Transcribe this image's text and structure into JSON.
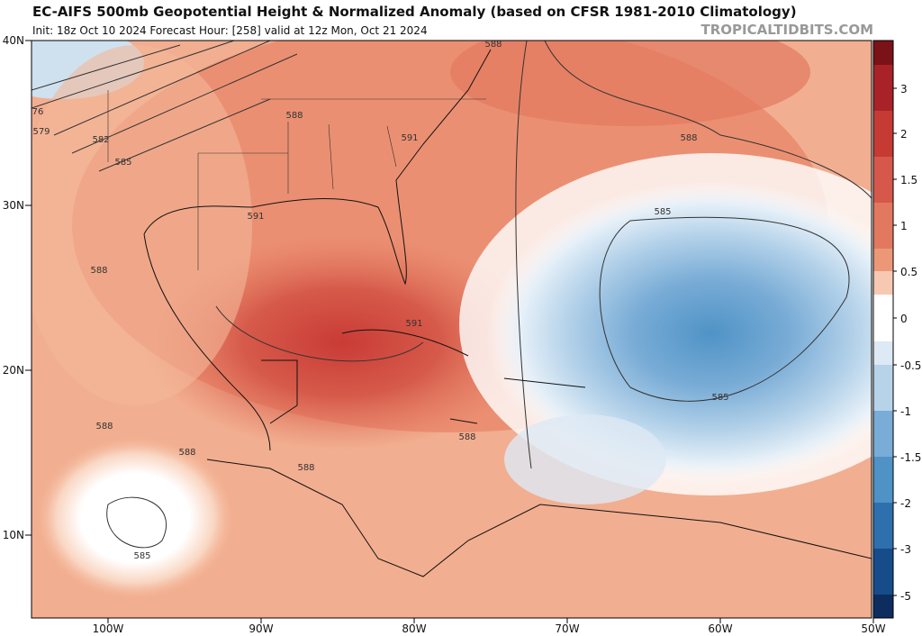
{
  "header": {
    "title": "EC-AIFS 500mb Geopotential Height & Normalized Anomaly (based on CFSR 1981-2010 Climatology)",
    "subtitle": "Init: 18z Oct 10 2024   Forecast Hour: [258]   valid at 12z Mon, Oct 21 2024",
    "watermark": "TROPICALTIDBITS.COM"
  },
  "map": {
    "lat_labels": [
      "40N",
      "30N",
      "20N",
      "10N"
    ],
    "lon_labels": [
      "100W",
      "90W",
      "80W",
      "70W",
      "60W",
      "50W"
    ],
    "contour_labels": [
      "588",
      "591",
      "591",
      "591",
      "588",
      "588",
      "588",
      "588",
      "588",
      "588",
      "585",
      "585",
      "585",
      "585",
      "582",
      "579",
      "76",
      "588"
    ]
  },
  "colorbar": {
    "ticks": [
      3,
      2,
      1.5,
      1,
      0.5,
      0,
      -0.5,
      -1,
      -1.5,
      -2,
      -3,
      -5
    ]
  }
}
